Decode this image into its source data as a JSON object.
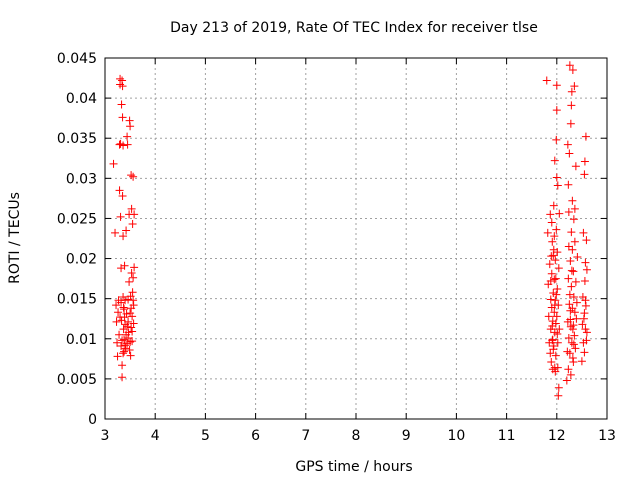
{
  "chart_data": {
    "type": "scatter",
    "title": "Day 213 of 2019, Rate Of TEC Index for receiver tlse",
    "xlabel": "GPS time / hours",
    "ylabel": "ROTI / TECUs",
    "xlim": [
      3,
      13
    ],
    "ylim": [
      0,
      0.045
    ],
    "xticks": [
      "3",
      "4",
      "5",
      "6",
      "7",
      "8",
      "9",
      "10",
      "11",
      "12",
      "13"
    ],
    "yticks": [
      "0",
      "0.005",
      "0.01",
      "0.015",
      "0.02",
      "0.025",
      "0.03",
      "0.035",
      "0.04",
      "0.045"
    ],
    "grid": true,
    "marker": "+",
    "color": "#ff0000",
    "series": [
      {
        "name": "ROTI",
        "points": [
          [
            3.17,
            0.0318
          ],
          [
            3.2,
            0.0232
          ],
          [
            3.22,
            0.0142
          ],
          [
            3.23,
            0.0121
          ],
          [
            3.24,
            0.0095
          ],
          [
            3.25,
            0.0078
          ],
          [
            3.26,
            0.0133
          ],
          [
            3.27,
            0.0148
          ],
          [
            3.28,
            0.0105
          ],
          [
            3.29,
            0.0285
          ],
          [
            3.29,
            0.0342
          ],
          [
            3.3,
            0.0424
          ],
          [
            3.3,
            0.0417
          ],
          [
            3.31,
            0.0343
          ],
          [
            3.31,
            0.0252
          ],
          [
            3.32,
            0.0091
          ],
          [
            3.32,
            0.0188
          ],
          [
            3.33,
            0.0392
          ],
          [
            3.33,
            0.0123
          ],
          [
            3.34,
            0.0067
          ],
          [
            3.34,
            0.0052
          ],
          [
            3.34,
            0.0422
          ],
          [
            3.35,
            0.0415
          ],
          [
            3.35,
            0.0376
          ],
          [
            3.35,
            0.0278
          ],
          [
            3.36,
            0.0341
          ],
          [
            3.36,
            0.0152
          ],
          [
            3.36,
            0.0228
          ],
          [
            3.37,
            0.0139
          ],
          [
            3.37,
            0.0112
          ],
          [
            3.38,
            0.0099
          ],
          [
            3.38,
            0.0084
          ],
          [
            3.39,
            0.0127
          ],
          [
            3.39,
            0.0191
          ],
          [
            3.4,
            0.0148
          ],
          [
            3.4,
            0.0118
          ],
          [
            3.41,
            0.0088
          ],
          [
            3.42,
            0.0105
          ],
          [
            3.42,
            0.0235
          ],
          [
            3.43,
            0.0131
          ],
          [
            3.44,
            0.0094
          ],
          [
            3.44,
            0.0352
          ],
          [
            3.45,
            0.0342
          ],
          [
            3.46,
            0.0149
          ],
          [
            3.46,
            0.0121
          ],
          [
            3.47,
            0.0108
          ],
          [
            3.48,
            0.0255
          ],
          [
            3.48,
            0.0171
          ],
          [
            3.49,
            0.0086
          ],
          [
            3.49,
            0.0372
          ],
          [
            3.5,
            0.0365
          ],
          [
            3.5,
            0.0132
          ],
          [
            3.51,
            0.0153
          ],
          [
            3.51,
            0.0079
          ],
          [
            3.52,
            0.0114
          ],
          [
            3.52,
            0.0304
          ],
          [
            3.53,
            0.0262
          ],
          [
            3.53,
            0.0182
          ],
          [
            3.54,
            0.0097
          ],
          [
            3.54,
            0.0128
          ],
          [
            3.55,
            0.0158
          ],
          [
            3.55,
            0.0243
          ],
          [
            3.56,
            0.0302
          ],
          [
            3.56,
            0.0176
          ],
          [
            3.57,
            0.0119
          ],
          [
            3.57,
            0.0142
          ],
          [
            3.58,
            0.0189
          ],
          [
            3.58,
            0.0255
          ],
          [
            3.3,
            0.0127
          ],
          [
            3.32,
            0.0145
          ],
          [
            3.34,
            0.0098
          ],
          [
            3.36,
            0.0082
          ],
          [
            3.38,
            0.0137
          ],
          [
            3.4,
            0.0092
          ],
          [
            3.44,
            0.0115
          ],
          [
            3.46,
            0.0101
          ],
          [
            3.5,
            0.0096
          ],
          [
            3.52,
            0.0138
          ],
          [
            3.54,
            0.0109
          ],
          [
            3.56,
            0.0148
          ],
          [
            11.8,
            0.0422
          ],
          [
            11.82,
            0.0232
          ],
          [
            11.83,
            0.0168
          ],
          [
            11.84,
            0.0128
          ],
          [
            11.85,
            0.0095
          ],
          [
            11.86,
            0.0193
          ],
          [
            11.87,
            0.0255
          ],
          [
            11.87,
            0.0082
          ],
          [
            11.88,
            0.0149
          ],
          [
            11.88,
            0.0112
          ],
          [
            11.89,
            0.0203
          ],
          [
            11.89,
            0.0071
          ],
          [
            11.9,
            0.0139
          ],
          [
            11.9,
            0.0181
          ],
          [
            11.91,
            0.0098
          ],
          [
            11.91,
            0.0221
          ],
          [
            11.92,
            0.0122
          ],
          [
            11.92,
            0.0062
          ],
          [
            11.93,
            0.0157
          ],
          [
            11.93,
            0.0204
          ],
          [
            11.94,
            0.0091
          ],
          [
            11.94,
            0.0266
          ],
          [
            11.95,
            0.0133
          ],
          [
            11.95,
            0.0174
          ],
          [
            11.96,
            0.0108
          ],
          [
            11.96,
            0.0322
          ],
          [
            11.96,
            0.0064
          ],
          [
            11.97,
            0.0148
          ],
          [
            11.97,
            0.0198
          ],
          [
            11.98,
            0.0119
          ],
          [
            11.98,
            0.0079
          ],
          [
            11.99,
            0.0236
          ],
          [
            11.99,
            0.0348
          ],
          [
            12.0,
            0.0385
          ],
          [
            12.0,
            0.0416
          ],
          [
            12.0,
            0.0128
          ],
          [
            12.01,
            0.0162
          ],
          [
            12.01,
            0.0208
          ],
          [
            12.02,
            0.0095
          ],
          [
            12.02,
            0.0291
          ],
          [
            12.03,
            0.0029
          ],
          [
            12.03,
            0.0142
          ],
          [
            12.04,
            0.0039
          ],
          [
            12.04,
            0.0188
          ],
          [
            12.05,
            0.0112
          ],
          [
            12.05,
            0.0256
          ],
          [
            11.88,
            0.0172
          ],
          [
            11.9,
            0.0245
          ],
          [
            11.92,
            0.0099
          ],
          [
            11.94,
            0.0211
          ],
          [
            11.96,
            0.0142
          ],
          [
            11.98,
            0.0175
          ],
          [
            12.0,
            0.0301
          ],
          [
            12.02,
            0.0064
          ],
          [
            11.91,
            0.0116
          ],
          [
            11.93,
            0.0087
          ],
          [
            11.95,
            0.0228
          ],
          [
            11.97,
            0.0059
          ],
          [
            11.99,
            0.0155
          ],
          [
            12.01,
            0.0106
          ],
          [
            12.2,
            0.0048
          ],
          [
            12.21,
            0.0084
          ],
          [
            12.22,
            0.0121
          ],
          [
            12.22,
            0.0342
          ],
          [
            12.23,
            0.0175
          ],
          [
            12.23,
            0.0062
          ],
          [
            12.24,
            0.0101
          ],
          [
            12.24,
            0.0258
          ],
          [
            12.25,
            0.0143
          ],
          [
            12.25,
            0.0331
          ],
          [
            12.26,
            0.0082
          ],
          [
            12.26,
            0.0441
          ],
          [
            12.27,
            0.0197
          ],
          [
            12.27,
            0.0124
          ],
          [
            12.28,
            0.0055
          ],
          [
            12.28,
            0.0368
          ],
          [
            12.29,
            0.0165
          ],
          [
            12.29,
            0.0233
          ],
          [
            12.3,
            0.0095
          ],
          [
            12.3,
            0.0408
          ],
          [
            12.31,
            0.0138
          ],
          [
            12.31,
            0.0272
          ],
          [
            12.32,
            0.0112
          ],
          [
            12.32,
            0.0435
          ],
          [
            12.33,
            0.0184
          ],
          [
            12.33,
            0.0071
          ],
          [
            12.34,
            0.0152
          ],
          [
            12.34,
            0.0249
          ],
          [
            12.35,
            0.0104
          ],
          [
            12.35,
            0.0415
          ],
          [
            12.36,
            0.0133
          ],
          [
            12.36,
            0.0221
          ],
          [
            12.37,
            0.0088
          ],
          [
            12.38,
            0.0171
          ],
          [
            12.38,
            0.0315
          ],
          [
            12.39,
            0.0125
          ],
          [
            12.4,
            0.0145
          ],
          [
            12.41,
            0.0202
          ],
          [
            12.24,
            0.0215
          ],
          [
            12.26,
            0.0155
          ],
          [
            12.28,
            0.0115
          ],
          [
            12.3,
            0.0185
          ],
          [
            12.32,
            0.0076
          ],
          [
            12.34,
            0.0093
          ],
          [
            12.36,
            0.0262
          ],
          [
            12.23,
            0.0292
          ],
          [
            12.27,
            0.0135
          ],
          [
            12.31,
            0.0211
          ],
          [
            12.33,
            0.0117
          ],
          [
            12.29,
            0.0391
          ],
          [
            12.5,
            0.0072
          ],
          [
            12.51,
            0.0118
          ],
          [
            12.52,
            0.0152
          ],
          [
            12.53,
            0.0095
          ],
          [
            12.53,
            0.0232
          ],
          [
            12.54,
            0.0125
          ],
          [
            12.55,
            0.0305
          ],
          [
            12.55,
            0.0083
          ],
          [
            12.56,
            0.0172
          ],
          [
            12.56,
            0.0321
          ],
          [
            12.57,
            0.0112
          ],
          [
            12.57,
            0.0195
          ],
          [
            12.58,
            0.0352
          ],
          [
            12.58,
            0.0141
          ],
          [
            12.59,
            0.0223
          ],
          [
            12.6,
            0.0108
          ],
          [
            12.6,
            0.0186
          ],
          [
            12.55,
            0.0132
          ],
          [
            12.57,
            0.0148
          ],
          [
            12.59,
            0.0098
          ]
        ]
      }
    ]
  }
}
